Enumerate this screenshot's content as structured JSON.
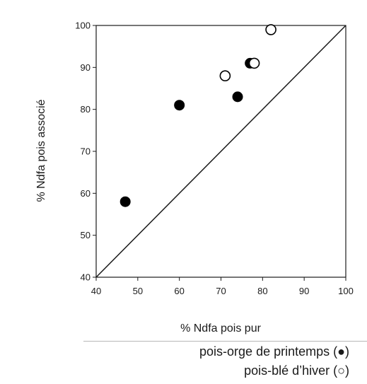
{
  "chart_data": {
    "type": "scatter",
    "xlabel": "% Ndfa pois pur",
    "ylabel": "% Ndfa pois associé",
    "xlim": [
      40,
      100
    ],
    "ylim": [
      40,
      100
    ],
    "xticks": [
      "40",
      "50",
      "60",
      "70",
      "80",
      "90",
      "100"
    ],
    "yticks": [
      "40",
      "50",
      "60",
      "70",
      "80",
      "90",
      "100"
    ],
    "grid": false,
    "reference_line": "1:1 diagonal",
    "series": [
      {
        "marker": "filled-circle",
        "color": "#000000",
        "points": [
          [
            47,
            58
          ],
          [
            60,
            81
          ],
          [
            74,
            83
          ],
          [
            77,
            91
          ]
        ]
      },
      {
        "marker": "open-circle",
        "color": "#000000",
        "points": [
          [
            71,
            88
          ],
          [
            78,
            91
          ],
          [
            82,
            99
          ]
        ]
      }
    ]
  },
  "legend": {
    "spring": "pois-orge de printemps (●)",
    "winter": "pois-blé d’hiver (○)"
  }
}
